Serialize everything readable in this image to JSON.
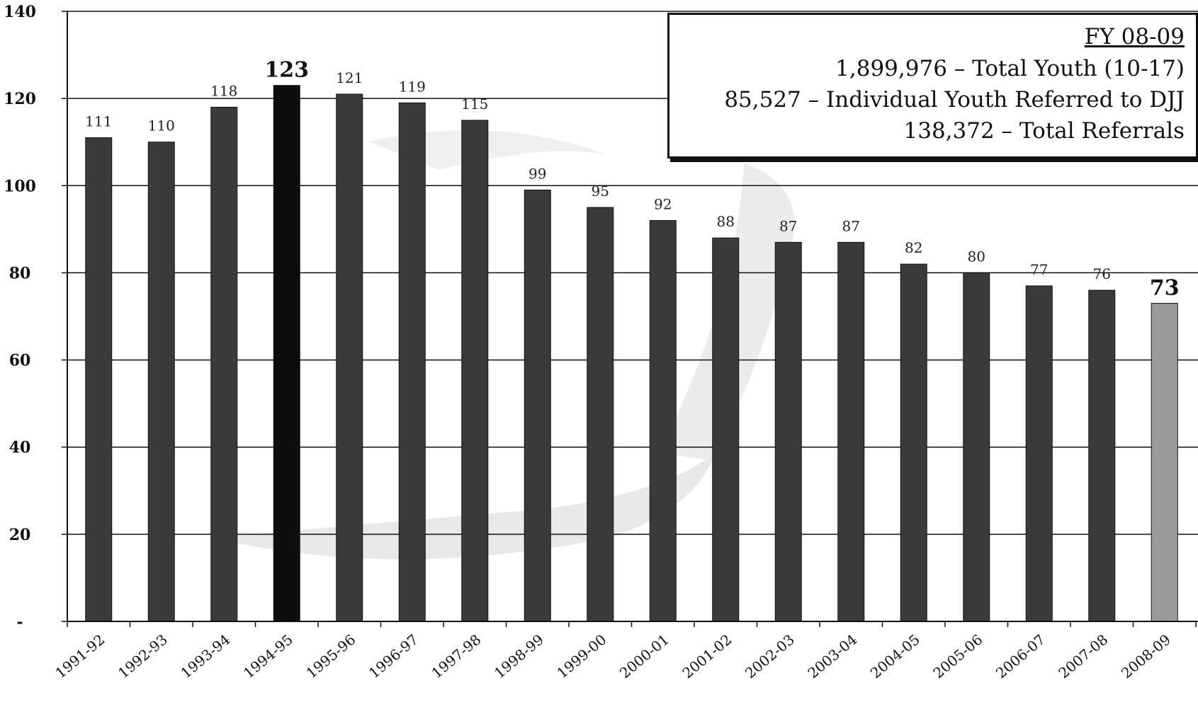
{
  "chart_data": {
    "type": "bar",
    "categories": [
      "1991-92",
      "1992-93",
      "1993-94",
      "1994-95",
      "1995-96",
      "1996-97",
      "1997-98",
      "1998-99",
      "1999-00",
      "2000-01",
      "2001-02",
      "2002-03",
      "2003-04",
      "2004-05",
      "2005-06",
      "2006-07",
      "2007-08",
      "2008-09"
    ],
    "values": [
      111,
      110,
      118,
      123,
      121,
      119,
      115,
      99,
      95,
      92,
      88,
      87,
      87,
      82,
      80,
      77,
      76,
      73
    ],
    "data_labels": [
      "111",
      "110",
      "118",
      "123",
      "121",
      "119",
      "115",
      "99",
      "95",
      "92",
      "88",
      "87",
      "87",
      "82",
      "80",
      "77",
      "76",
      "73"
    ],
    "emphasized_labels": [
      "1994-95",
      "2008-09"
    ],
    "ylim": [
      0,
      140
    ],
    "yticks": [
      0,
      20,
      40,
      60,
      80,
      100,
      120,
      140
    ],
    "ytick_labels": [
      "-",
      "20",
      "40",
      "60",
      "80",
      "100",
      "120",
      "140"
    ],
    "title": "",
    "xlabel": "",
    "ylabel": "",
    "grid": true,
    "legend": "none",
    "colors": {
      "default_bar": "#3a3a3a",
      "peak_bar": "#0d0d0d",
      "latest_bar": "#9a9a9a",
      "gridline": "#111111"
    }
  },
  "summary_box": {
    "title": "FY 08-09",
    "lines": [
      "1,899,976 – Total Youth (10-17)",
      "85,527 – Individual Youth Referred to DJJ",
      "138,372 – Total Referrals"
    ]
  }
}
